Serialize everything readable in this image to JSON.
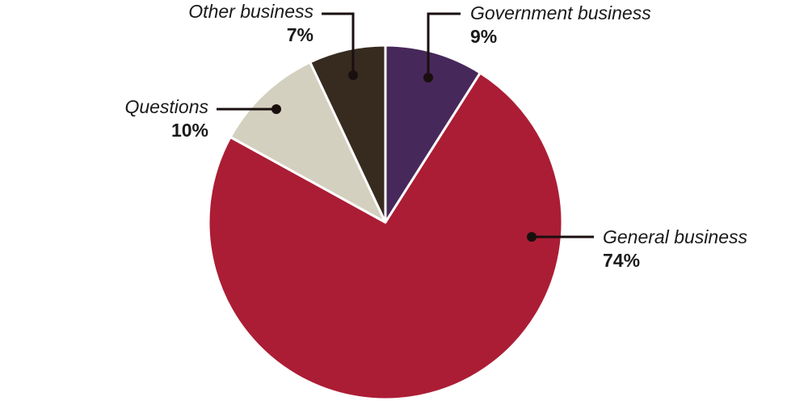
{
  "chart_data": {
    "type": "pie",
    "slices": [
      {
        "label": "Government business",
        "value": 9,
        "display": "9%",
        "color": "#47285a"
      },
      {
        "label": "General business",
        "value": 74,
        "display": "74%",
        "color": "#ab1d35"
      },
      {
        "label": "Questions",
        "value": 10,
        "display": "10%",
        "color": "#d4d0bf"
      },
      {
        "label": "Other business",
        "value": 7,
        "display": "7%",
        "color": "#372b20"
      }
    ],
    "slice_border_color": "#ffffff",
    "leader_color": "#1a0f0f",
    "start": "12 o'clock",
    "direction": "clockwise"
  }
}
